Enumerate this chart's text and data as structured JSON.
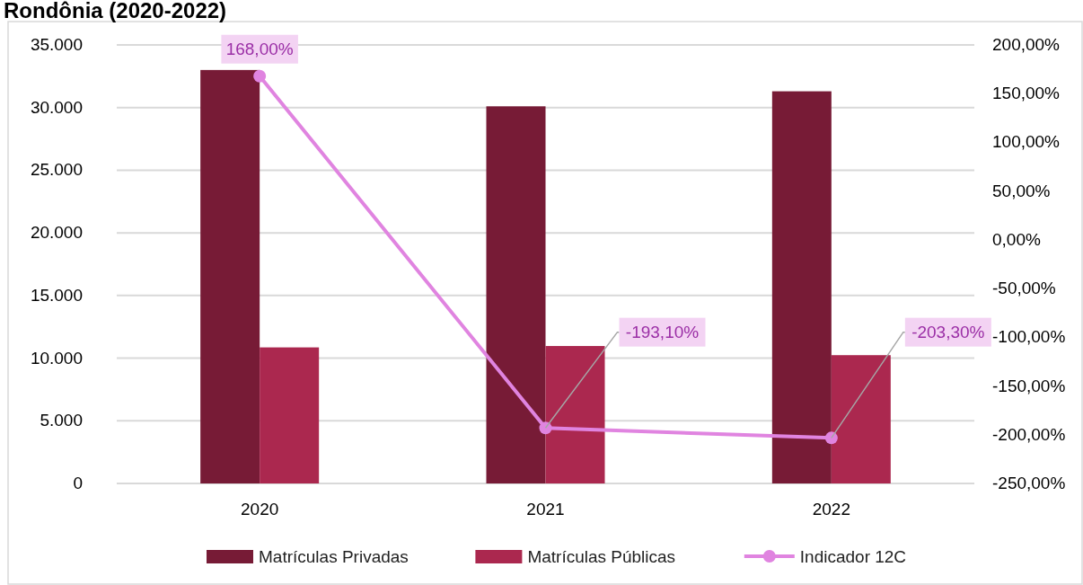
{
  "chart_data": {
    "type": "bar",
    "title": "Rondônia (2020-2022)",
    "categories": [
      "2020",
      "2021",
      "2022"
    ],
    "series": [
      {
        "name": "Matrículas Privadas",
        "color": "#771b36",
        "values": [
          33000,
          30100,
          31300
        ]
      },
      {
        "name": "Matrículas Públicas",
        "color": "#ab284f",
        "values": [
          10860,
          10970,
          10240
        ]
      },
      {
        "name": "Indicador 12C",
        "type": "line",
        "axis": "y2",
        "color": "#e084e0",
        "marker": "circle",
        "values": [
          168,
          -193.1,
          -203.3
        ],
        "value_labels": [
          "168,00%",
          "-193,10%",
          "-203,30%"
        ]
      }
    ],
    "ylim": [
      0,
      35000
    ],
    "yticks": [
      {
        "value": 0,
        "label": "0"
      },
      {
        "value": 5000,
        "label": "5.000"
      },
      {
        "value": 10000,
        "label": "10.000"
      },
      {
        "value": 15000,
        "label": "15.000"
      },
      {
        "value": 20000,
        "label": "20.000"
      },
      {
        "value": 25000,
        "label": "25.000"
      },
      {
        "value": 30000,
        "label": "30.000"
      },
      {
        "value": 35000,
        "label": "35.000"
      }
    ],
    "y2lim": [
      -250,
      200
    ],
    "y2ticks": [
      {
        "value": -250,
        "label": "-250,00%"
      },
      {
        "value": -200,
        "label": "-200,00%"
      },
      {
        "value": -150,
        "label": "-150,00%"
      },
      {
        "value": -100,
        "label": "-100,00%"
      },
      {
        "value": -50,
        "label": "-50,00%"
      },
      {
        "value": 0,
        "label": "0,00%"
      },
      {
        "value": 50,
        "label": "50,00%"
      },
      {
        "value": 100,
        "label": "100,00%"
      },
      {
        "value": 150,
        "label": "150,00%"
      },
      {
        "value": 200,
        "label": "200,00%"
      }
    ],
    "grid": "y",
    "legend": "bottom"
  }
}
